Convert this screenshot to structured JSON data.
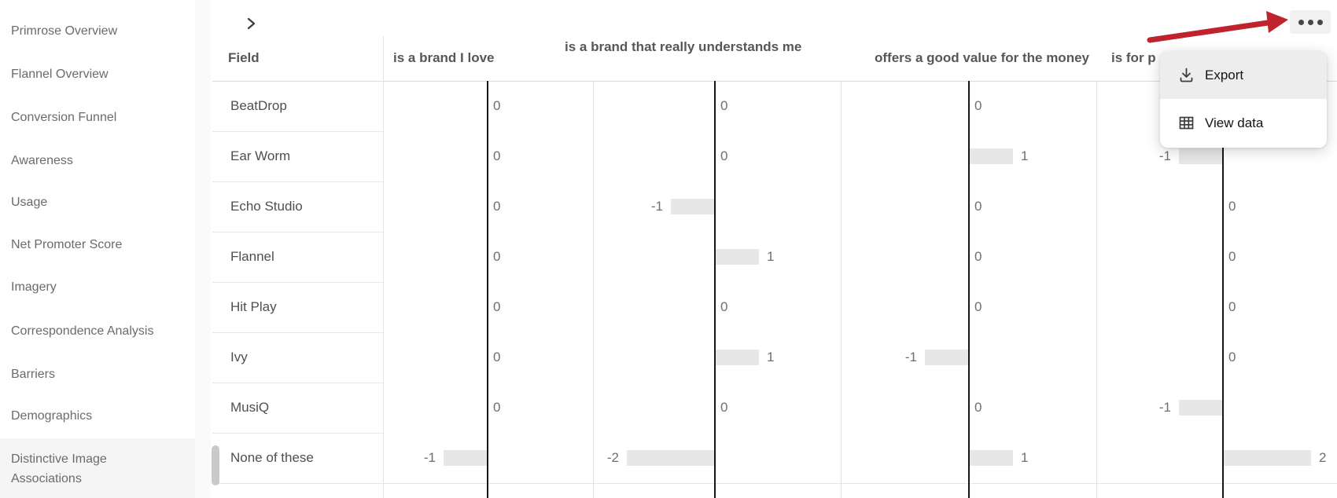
{
  "sidebar": {
    "items": [
      {
        "label": "Primrose Overview",
        "selected": false
      },
      {
        "label": "Flannel Overview",
        "selected": false
      },
      {
        "label": "Conversion Funnel",
        "selected": false
      },
      {
        "label": "Awareness",
        "selected": false
      },
      {
        "label": "Usage",
        "selected": false
      },
      {
        "label": "Net Promoter Score",
        "selected": false
      },
      {
        "label": "Imagery",
        "selected": false
      },
      {
        "label": "Correspondence Analysis",
        "selected": false
      },
      {
        "label": "Barriers",
        "selected": false
      },
      {
        "label": "Demographics",
        "selected": false
      },
      {
        "label": "Distinctive Image Associations",
        "selected": true
      }
    ]
  },
  "toolbar": {
    "expand_chevron": "expand",
    "menu_button": "kebab-menu"
  },
  "dropdown_menu": {
    "items": [
      {
        "label": "Export",
        "icon": "download-icon",
        "highlighted": true
      },
      {
        "label": "View data",
        "icon": "table-icon",
        "highlighted": false
      }
    ]
  },
  "table": {
    "field_header": "Field",
    "columns": [
      {
        "label": "is a brand I love"
      },
      {
        "label": "is a brand that really understands me"
      },
      {
        "label": "offers a good value for the money"
      },
      {
        "label": "is for p",
        "truncated_by_overlay": true
      }
    ],
    "rows": [
      {
        "field": "BeatDrop",
        "values": [
          0,
          0,
          0,
          null
        ]
      },
      {
        "field": "Ear Worm",
        "values": [
          0,
          0,
          1,
          -1
        ]
      },
      {
        "field": "Echo Studio",
        "values": [
          0,
          -1,
          0,
          0
        ]
      },
      {
        "field": "Flannel",
        "values": [
          0,
          1,
          0,
          0
        ]
      },
      {
        "field": "Hit Play",
        "values": [
          0,
          0,
          0,
          0
        ]
      },
      {
        "field": "Ivy",
        "values": [
          0,
          1,
          -1,
          0
        ]
      },
      {
        "field": "MusiQ",
        "values": [
          0,
          0,
          0,
          -1
        ]
      },
      {
        "field": "None of these",
        "values": [
          -1,
          -2,
          1,
          2
        ]
      }
    ]
  },
  "chart_data": {
    "type": "bar",
    "orientation": "horizontal",
    "categories": [
      "BeatDrop",
      "Ear Worm",
      "Echo Studio",
      "Flannel",
      "Hit Play",
      "Ivy",
      "MusiQ",
      "None of these"
    ],
    "series": [
      {
        "name": "is a brand I love",
        "values": [
          0,
          0,
          0,
          0,
          0,
          0,
          0,
          -1
        ]
      },
      {
        "name": "is a brand that really understands me",
        "values": [
          0,
          0,
          -1,
          1,
          0,
          1,
          0,
          -2
        ]
      },
      {
        "name": "offers a good value for the money",
        "values": [
          0,
          1,
          0,
          0,
          0,
          -1,
          0,
          1
        ]
      },
      {
        "name": "is for p",
        "values": [
          null,
          -1,
          0,
          0,
          0,
          0,
          -1,
          2
        ]
      }
    ],
    "title": "Distinctive Image Associations",
    "xlabel": "",
    "ylabel": "",
    "value_range": [
      -2,
      2
    ],
    "grid": false,
    "legend_position": "none",
    "bar_color": "#e7e7e7"
  },
  "colors": {
    "accent_arrow": "#c0222e",
    "bar_fill": "#e7e7e7",
    "axis": "#161616",
    "selected_bg": "#f5f5f5",
    "menu_highlight": "#ededed"
  }
}
